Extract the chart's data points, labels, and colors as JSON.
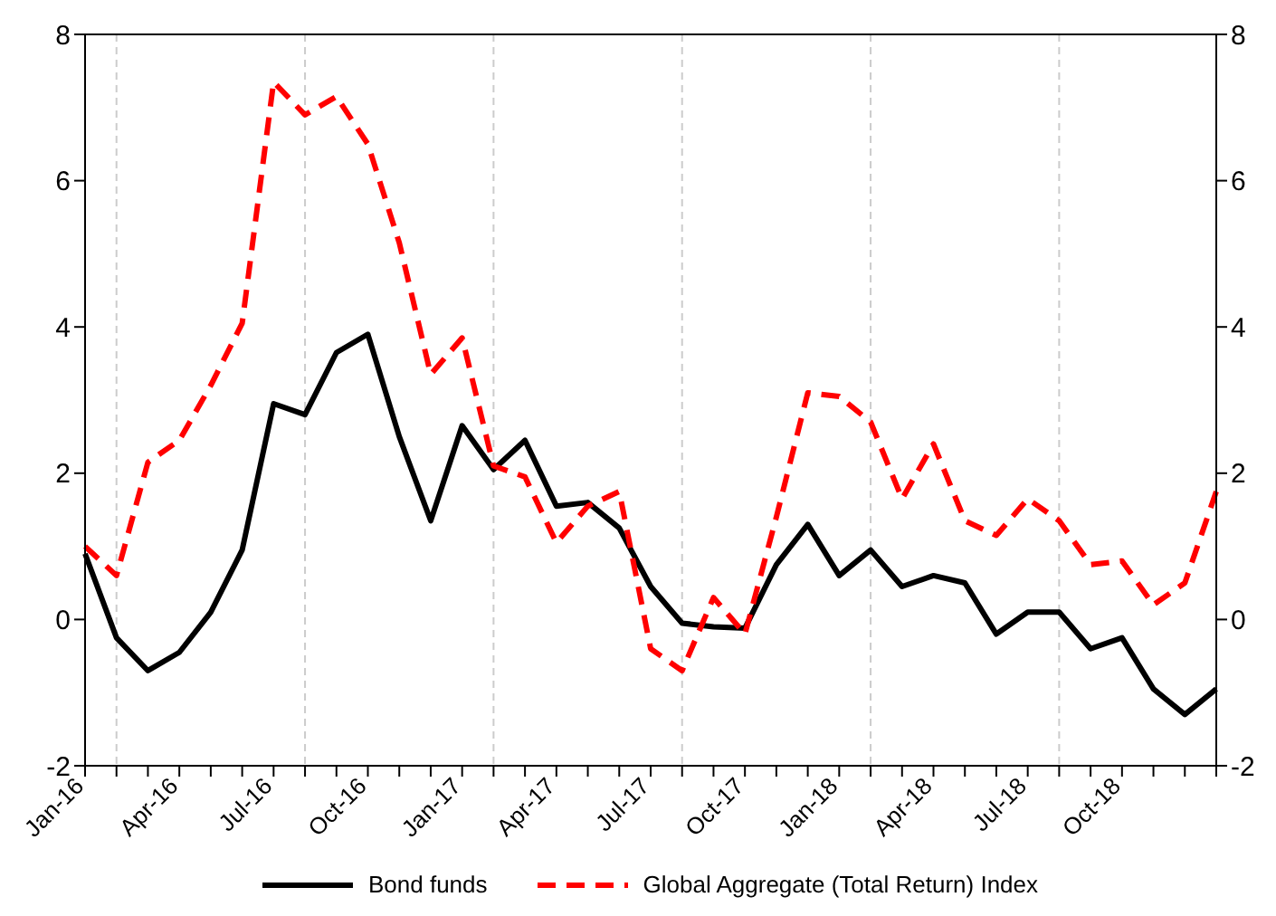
{
  "chart_data": {
    "type": "line",
    "categories": [
      "Jan-16",
      null,
      null,
      "Apr-16",
      null,
      null,
      "Jul-16",
      null,
      null,
      "Oct-16",
      null,
      null,
      "Jan-17",
      null,
      null,
      "Apr-17",
      null,
      null,
      "Jul-17",
      null,
      null,
      "Oct-17",
      null,
      null,
      "Jan-18",
      null,
      null,
      "Apr-18",
      null,
      null,
      "Jul-18",
      null,
      null,
      "Oct-18",
      null,
      null,
      null
    ],
    "series": [
      {
        "name": "Bond funds",
        "color": "#000000",
        "line_style": "solid",
        "values": [
          0.9,
          -0.25,
          -0.7,
          -0.45,
          0.1,
          0.95,
          2.95,
          2.8,
          3.65,
          3.9,
          2.5,
          1.35,
          2.65,
          2.05,
          2.45,
          1.55,
          1.6,
          1.25,
          0.45,
          -0.05,
          -0.1,
          -0.12,
          0.75,
          1.3,
          0.6,
          0.95,
          0.45,
          0.6,
          0.5,
          -0.2,
          0.1,
          0.1,
          -0.4,
          -0.25,
          -0.95,
          -1.3,
          -0.95
        ]
      },
      {
        "name": "Global Aggregate (Total Return) Index",
        "color": "#ff0000",
        "line_style": "dashed",
        "values": [
          1.0,
          0.6,
          2.15,
          2.45,
          3.2,
          4.05,
          7.35,
          6.9,
          7.15,
          6.5,
          5.15,
          3.35,
          3.85,
          2.1,
          1.95,
          1.05,
          1.55,
          1.75,
          -0.4,
          -0.7,
          0.3,
          -0.2,
          1.4,
          3.1,
          3.05,
          2.7,
          1.65,
          2.4,
          1.35,
          1.15,
          1.65,
          1.35,
          0.75,
          0.8,
          0.2,
          0.5,
          1.75
        ]
      }
    ],
    "ylim": [
      -2,
      8
    ],
    "yticks": [
      -2,
      0,
      2,
      4,
      6,
      8
    ],
    "y2lim": [
      -2,
      8
    ],
    "y2ticks": [
      -2,
      0,
      2,
      4,
      6,
      8
    ],
    "grid": true,
    "legend": "bottom"
  }
}
